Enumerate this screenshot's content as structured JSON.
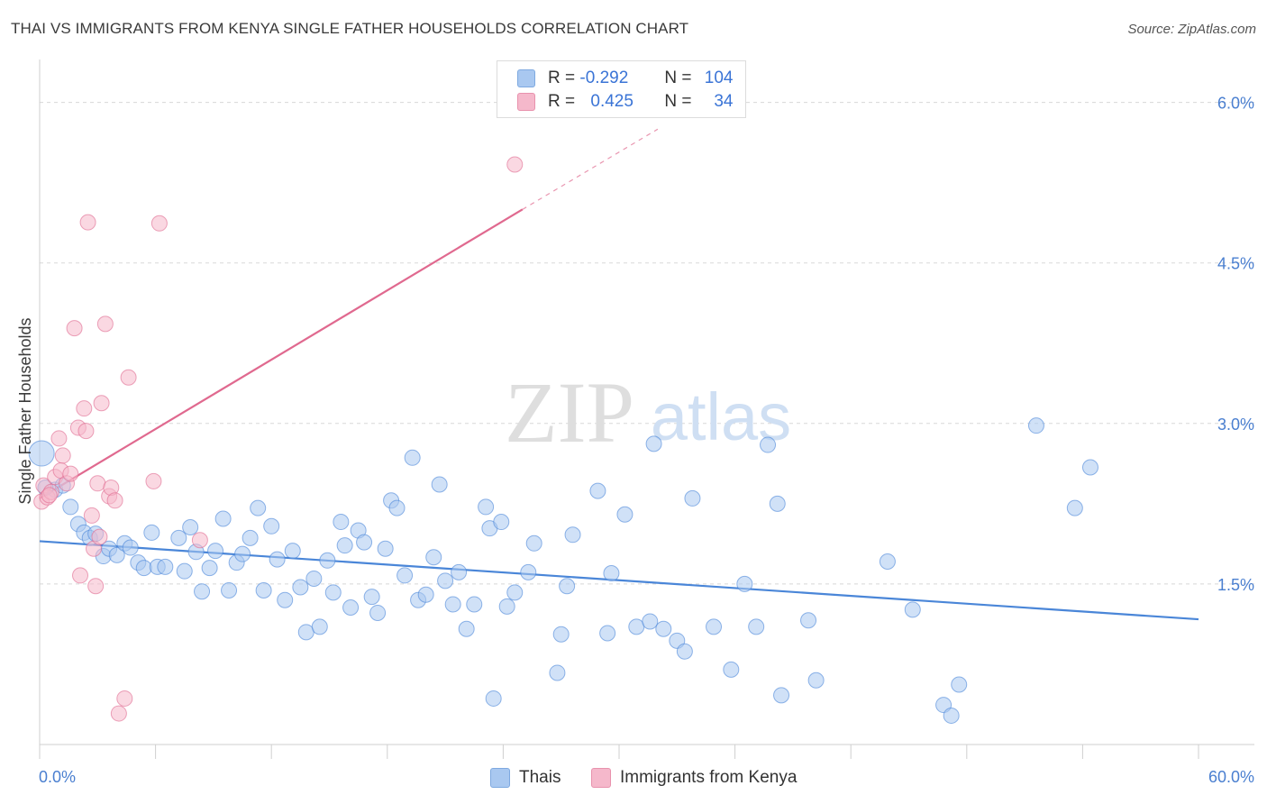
{
  "header": {
    "title": "THAI VS IMMIGRANTS FROM KENYA SINGLE FATHER HOUSEHOLDS CORRELATION CHART",
    "source": "Source: ZipAtlas.com"
  },
  "watermark": {
    "zip": "ZIP",
    "atlas": "atlas"
  },
  "legend": {
    "rows": [
      {
        "r_label": "R =",
        "r_value": "-0.292",
        "n_label": "N =",
        "n_value": "104",
        "color": "#a9c8f0"
      },
      {
        "r_label": "R =",
        "r_value": "0.425",
        "n_label": "N =",
        "n_value": "34",
        "color": "#f5b8cb"
      }
    ]
  },
  "bottom_legend": {
    "items": [
      {
        "label": "Thais",
        "color": "#a9c8f0"
      },
      {
        "label": "Immigrants from Kenya",
        "color": "#f5b8cb"
      }
    ]
  },
  "chart_data": {
    "type": "scatter",
    "title": "THAI VS IMMIGRANTS FROM KENYA SINGLE FATHER HOUSEHOLDS CORRELATION CHART",
    "xlabel": "",
    "ylabel": "Single Father Households",
    "xlim": [
      0,
      60
    ],
    "ylim": [
      0,
      6.3
    ],
    "x_tick_labels": [
      "0.0%",
      "60.0%"
    ],
    "y_ticks": [
      1.5,
      3.0,
      4.5,
      6.0
    ],
    "y_tick_labels": [
      "1.5%",
      "3.0%",
      "4.5%",
      "6.0%"
    ],
    "grid": true,
    "legend_position": "top-center",
    "series": [
      {
        "name": "Thais",
        "color": "#4a86d8",
        "fill": "#a9c8f0",
        "trend": {
          "x0": 0,
          "y0": 1.9,
          "x1": 60,
          "y1": 1.17
        },
        "points": [
          [
            0.1,
            2.72
          ],
          [
            0.8,
            2.38
          ],
          [
            1.2,
            2.42
          ],
          [
            1.6,
            2.22
          ],
          [
            2.0,
            2.06
          ],
          [
            2.3,
            1.98
          ],
          [
            2.6,
            1.93
          ],
          [
            2.9,
            1.97
          ],
          [
            3.3,
            1.76
          ],
          [
            3.6,
            1.83
          ],
          [
            4.0,
            1.77
          ],
          [
            4.4,
            1.88
          ],
          [
            4.7,
            1.84
          ],
          [
            5.1,
            1.7
          ],
          [
            5.4,
            1.65
          ],
          [
            5.8,
            1.98
          ],
          [
            6.1,
            1.66
          ],
          [
            6.5,
            1.66
          ],
          [
            7.2,
            1.93
          ],
          [
            7.5,
            1.62
          ],
          [
            7.8,
            2.03
          ],
          [
            8.1,
            1.8
          ],
          [
            8.4,
            1.43
          ],
          [
            8.8,
            1.65
          ],
          [
            9.1,
            1.81
          ],
          [
            9.5,
            2.11
          ],
          [
            9.8,
            1.44
          ],
          [
            10.2,
            1.7
          ],
          [
            10.5,
            1.78
          ],
          [
            10.9,
            1.93
          ],
          [
            11.3,
            2.21
          ],
          [
            11.6,
            1.44
          ],
          [
            12.0,
            2.04
          ],
          [
            12.3,
            1.73
          ],
          [
            12.7,
            1.35
          ],
          [
            13.1,
            1.81
          ],
          [
            13.5,
            1.47
          ],
          [
            13.8,
            1.05
          ],
          [
            14.2,
            1.55
          ],
          [
            14.5,
            1.1
          ],
          [
            14.9,
            1.72
          ],
          [
            15.2,
            1.42
          ],
          [
            15.6,
            2.08
          ],
          [
            15.8,
            1.86
          ],
          [
            16.1,
            1.28
          ],
          [
            16.5,
            2.0
          ],
          [
            16.8,
            1.89
          ],
          [
            17.2,
            1.38
          ],
          [
            17.5,
            1.23
          ],
          [
            17.9,
            1.83
          ],
          [
            18.2,
            2.28
          ],
          [
            18.5,
            2.21
          ],
          [
            18.9,
            1.58
          ],
          [
            19.3,
            2.68
          ],
          [
            19.6,
            1.35
          ],
          [
            20.0,
            1.4
          ],
          [
            20.4,
            1.75
          ],
          [
            20.7,
            2.43
          ],
          [
            21.0,
            1.53
          ],
          [
            21.4,
            1.31
          ],
          [
            21.7,
            1.61
          ],
          [
            22.1,
            1.08
          ],
          [
            22.5,
            1.31
          ],
          [
            23.1,
            2.22
          ],
          [
            23.3,
            2.02
          ],
          [
            23.5,
            0.43
          ],
          [
            23.9,
            2.08
          ],
          [
            24.2,
            1.29
          ],
          [
            24.6,
            1.42
          ],
          [
            25.3,
            1.61
          ],
          [
            25.6,
            1.88
          ],
          [
            26.8,
            0.67
          ],
          [
            27.0,
            1.03
          ],
          [
            27.3,
            1.48
          ],
          [
            27.6,
            1.96
          ],
          [
            28.9,
            2.37
          ],
          [
            29.4,
            1.04
          ],
          [
            29.6,
            1.6
          ],
          [
            30.3,
            2.15
          ],
          [
            30.9,
            1.1
          ],
          [
            31.6,
            1.15
          ],
          [
            31.8,
            2.81
          ],
          [
            32.3,
            1.08
          ],
          [
            33.0,
            0.97
          ],
          [
            33.4,
            0.87
          ],
          [
            33.8,
            2.3
          ],
          [
            34.9,
            1.1
          ],
          [
            35.8,
            0.7
          ],
          [
            36.5,
            1.5
          ],
          [
            37.1,
            1.1
          ],
          [
            37.7,
            2.8
          ],
          [
            38.2,
            2.25
          ],
          [
            38.4,
            0.46
          ],
          [
            39.8,
            1.16
          ],
          [
            40.2,
            0.6
          ],
          [
            43.9,
            1.71
          ],
          [
            45.2,
            1.26
          ],
          [
            46.8,
            0.37
          ],
          [
            47.2,
            0.27
          ],
          [
            47.6,
            0.56
          ],
          [
            51.6,
            2.98
          ],
          [
            53.6,
            2.21
          ],
          [
            54.4,
            2.59
          ],
          [
            0.3,
            2.4
          ]
        ]
      },
      {
        "name": "Immigrants from Kenya",
        "color": "#e0698f",
        "fill": "#f5b8cb",
        "trend": {
          "x0": 0,
          "y0": 2.3,
          "x1": 25,
          "y1": 5.0,
          "dash_x1": 32,
          "dash_y1": 5.75
        },
        "points": [
          [
            0.1,
            2.27
          ],
          [
            0.2,
            2.42
          ],
          [
            0.4,
            2.31
          ],
          [
            0.6,
            2.36
          ],
          [
            0.8,
            2.5
          ],
          [
            1.0,
            2.86
          ],
          [
            1.1,
            2.56
          ],
          [
            1.2,
            2.7
          ],
          [
            1.4,
            2.44
          ],
          [
            1.6,
            2.53
          ],
          [
            1.8,
            3.89
          ],
          [
            2.0,
            2.96
          ],
          [
            2.1,
            1.58
          ],
          [
            2.3,
            3.14
          ],
          [
            2.4,
            2.93
          ],
          [
            2.5,
            4.88
          ],
          [
            2.7,
            2.14
          ],
          [
            2.8,
            1.83
          ],
          [
            2.9,
            1.48
          ],
          [
            3.0,
            2.44
          ],
          [
            3.1,
            1.94
          ],
          [
            3.2,
            3.19
          ],
          [
            3.4,
            3.93
          ],
          [
            3.6,
            2.32
          ],
          [
            3.7,
            2.4
          ],
          [
            3.9,
            2.28
          ],
          [
            4.1,
            0.29
          ],
          [
            4.4,
            0.43
          ],
          [
            4.6,
            3.43
          ],
          [
            5.9,
            2.46
          ],
          [
            6.2,
            4.87
          ],
          [
            8.3,
            1.91
          ],
          [
            24.6,
            5.42
          ],
          [
            0.5,
            2.33
          ]
        ]
      }
    ]
  }
}
